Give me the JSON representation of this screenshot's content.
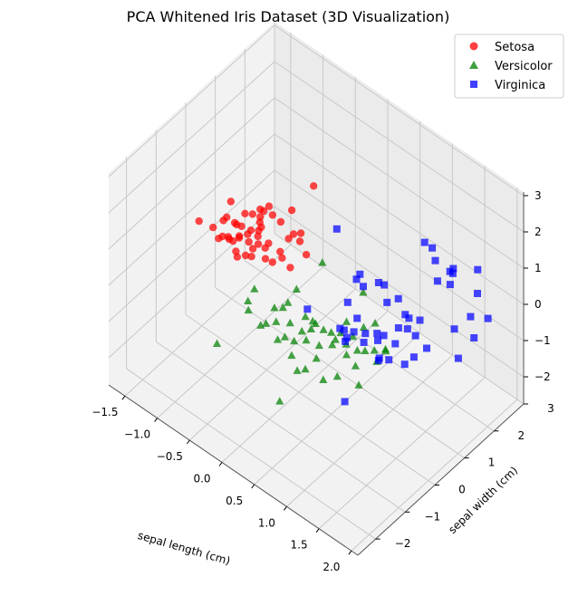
{
  "chart_data": {
    "type": "scatter",
    "projection": "3d",
    "title": "PCA Whitened Iris Dataset (3D Visualization)",
    "xlabel": "sepal length (cm)",
    "ylabel": "sepal width (cm)",
    "zlabel": "",
    "xlim": [
      -1.75,
      2.1
    ],
    "ylim": [
      -2.6,
      3.0
    ],
    "zlim": [
      -2.75,
      3.1
    ],
    "xticks": [
      -1.5,
      -1.0,
      -0.5,
      0.0,
      0.5,
      1.0,
      1.5,
      2.0
    ],
    "xtick_labels": [
      "−1.5",
      "−1.0",
      "−0.5",
      "0.0",
      "0.5",
      "1.0",
      "1.5",
      "2.0"
    ],
    "yticks": [
      -2,
      -1,
      0,
      1,
      2,
      3
    ],
    "ytick_labels": [
      "−2",
      "−1",
      "0",
      "1",
      "2",
      "3"
    ],
    "zticks": [
      -2,
      -1,
      0,
      1,
      2,
      3
    ],
    "ztick_labels": [
      "−2",
      "−1",
      "0",
      "1",
      "2",
      "3"
    ],
    "grid": true,
    "legend_position": "top-right",
    "series": [
      {
        "name": "Setosa",
        "marker": "circle",
        "color": "#ff0000",
        "points": [
          [
            -1.43,
            -0.25,
            0.41
          ],
          [
            -1.35,
            0.05,
            0.11
          ],
          [
            -1.29,
            0.38,
            0.22
          ],
          [
            -1.31,
            0.15,
            -0.22
          ],
          [
            -1.24,
            0.41,
            0.69
          ],
          [
            -1.25,
            0.65,
            -1.03
          ],
          [
            -1.16,
            0.18,
            -0.08
          ],
          [
            -1.14,
            -0.06,
            0.64
          ],
          [
            -1.19,
            0.02,
            0.08
          ],
          [
            -1.06,
            0.3,
            0.04
          ],
          [
            -1.1,
            0.3,
            0.31
          ],
          [
            -1.07,
            -0.05,
            0.27
          ],
          [
            -1.0,
            0.17,
            0.16
          ],
          [
            -0.97,
            0.43,
            -0.11
          ],
          [
            -1.07,
            0.17,
            0.49
          ],
          [
            -1.0,
            -0.04,
            0.23
          ],
          [
            -0.97,
            0.32,
            -0.4
          ],
          [
            -0.91,
            0.05,
            0.68
          ],
          [
            -0.91,
            -0.14,
            0.13
          ],
          [
            -0.86,
            0.57,
            0.82
          ],
          [
            -0.88,
            0.1,
            1.03
          ],
          [
            -0.86,
            0.52,
            0.27
          ],
          [
            -0.81,
            0.04,
            0.59
          ],
          [
            -0.82,
            0.17,
            0.59
          ],
          [
            -0.79,
            0.16,
            1.08
          ],
          [
            -0.72,
            0.19,
            0.53
          ],
          [
            -0.82,
            0.19,
            -0.15
          ],
          [
            -0.8,
            0.44,
            0.78
          ],
          [
            -0.74,
            0.06,
            0.26
          ],
          [
            -0.7,
            0.34,
            1.14
          ],
          [
            -0.71,
            0.54,
            1.11
          ],
          [
            -0.66,
            0.17,
            0.87
          ],
          [
            -0.65,
            0.1,
            1.07
          ],
          [
            -0.59,
            0.4,
            1.12
          ],
          [
            -0.6,
            0.17,
            0.37
          ],
          [
            -0.61,
            -0.04,
            0.62
          ],
          [
            -0.52,
            0.11,
            0.64
          ],
          [
            -0.5,
            0.48,
            0.98
          ],
          [
            -0.37,
            0.46,
            0.69
          ],
          [
            -0.39,
            -0.04,
            0.39
          ],
          [
            -0.42,
            0.35,
            0.18
          ],
          [
            -0.4,
            0.24,
            0.46
          ],
          [
            -0.33,
            0.48,
            1.51
          ],
          [
            -0.44,
            -0.17,
            0.52
          ],
          [
            -0.29,
            0.45,
            0.92
          ],
          [
            -0.29,
            0.7,
            0.76
          ],
          [
            -0.23,
            0.21,
            0.25
          ],
          [
            -0.21,
            0.49,
            0.79
          ],
          [
            -0.16,
            0.6,
            0.4
          ],
          [
            -0.13,
            0.78,
            2.2
          ]
        ]
      },
      {
        "name": "Versicolor",
        "marker": "triangle",
        "color": "#008000",
        "points": [
          [
            -0.47,
            -0.68,
            -0.56
          ],
          [
            -0.39,
            -0.44,
            -1.06
          ],
          [
            -0.38,
            -0.89,
            -0.04
          ],
          [
            -0.3,
            -0.85,
            0.36
          ],
          [
            -0.2,
            -0.39,
            -0.38
          ],
          [
            -0.14,
            -0.81,
            -0.43
          ],
          [
            -0.11,
            -0.3,
            -0.33
          ],
          [
            -0.05,
            -0.66,
            -0.38
          ],
          [
            -0.02,
            -0.33,
            -0.06
          ],
          [
            0.01,
            -0.74,
            -0.74
          ],
          [
            0.07,
            -0.63,
            -0.68
          ],
          [
            0.1,
            -0.3,
            0.43
          ],
          [
            0.12,
            -0.56,
            -0.28
          ],
          [
            0.16,
            -0.13,
            -0.38
          ],
          [
            0.21,
            -0.36,
            -0.55
          ],
          [
            0.24,
            -0.69,
            -0.54
          ],
          [
            0.25,
            -0.08,
            -0.43
          ],
          [
            0.27,
            0.2,
            1.0
          ],
          [
            0.28,
            -0.86,
            -0.76
          ],
          [
            0.33,
            -0.31,
            -0.38
          ],
          [
            0.38,
            -0.27,
            -0.2
          ],
          [
            0.36,
            -0.54,
            -0.48
          ],
          [
            0.44,
            -0.13,
            -0.4
          ],
          [
            0.4,
            -0.66,
            -1.14
          ],
          [
            0.48,
            0.04,
            -0.55
          ],
          [
            0.5,
            -0.41,
            -0.55
          ],
          [
            0.55,
            -1.26,
            -0.55
          ],
          [
            0.58,
            -0.68,
            -0.61
          ],
          [
            0.62,
            -0.23,
            -0.52
          ],
          [
            0.66,
            -0.03,
            -0.29
          ],
          [
            0.71,
            -0.32,
            -0.2
          ],
          [
            0.7,
            -0.71,
            -1.03
          ],
          [
            0.74,
            -0.01,
            0.1
          ],
          [
            0.79,
            -0.13,
            -0.37
          ],
          [
            0.83,
            -0.52,
            -0.92
          ],
          [
            0.87,
            0.27,
            0.86
          ],
          [
            0.87,
            -0.08,
            -0.1
          ],
          [
            0.91,
            -0.38,
            -0.33
          ],
          [
            0.95,
            0.11,
            0.11
          ],
          [
            0.98,
            -0.17,
            -0.28
          ],
          [
            1.02,
            -0.32,
            -0.55
          ],
          [
            1.05,
            0.28,
            0.22
          ],
          [
            1.08,
            -0.13,
            -0.2
          ],
          [
            1.12,
            0.1,
            -0.31
          ],
          [
            1.14,
            -0.47,
            -0.82
          ],
          [
            1.18,
            0.05,
            -0.51
          ],
          [
            1.24,
            0.22,
            -0.27
          ],
          [
            1.26,
            0.17,
            -0.16
          ],
          [
            0.48,
            -1.7,
            -1.15
          ],
          [
            -0.53,
            -1.61,
            -0.86
          ]
        ]
      },
      {
        "name": "Virginica",
        "marker": "square",
        "color": "#0000ff",
        "points": [
          [
            -0.27,
            1.87,
            0.03
          ],
          [
            0.19,
            -0.13,
            -0.13
          ],
          [
            0.41,
            0.75,
            -0.33
          ],
          [
            0.45,
            0.96,
            0.2
          ],
          [
            0.56,
            0.3,
            -0.58
          ],
          [
            0.57,
            0.14,
            -0.4
          ],
          [
            0.59,
            0.77,
            0.65
          ],
          [
            0.62,
            0.82,
            0.31
          ],
          [
            0.62,
            0.61,
            -0.41
          ],
          [
            0.65,
            1.27,
            0.12
          ],
          [
            0.67,
            0.39,
            -0.56
          ],
          [
            0.68,
            0.08,
            -0.58
          ],
          [
            0.75,
            1.24,
            0.2
          ],
          [
            0.8,
            -0.13,
            -0.17
          ],
          [
            0.89,
            0.3,
            -0.27
          ],
          [
            0.93,
            0.16,
            -0.36
          ],
          [
            0.93,
            0.63,
            -0.66
          ],
          [
            0.96,
            -0.55,
            -1.43
          ],
          [
            0.96,
            0.54,
            -0.36
          ],
          [
            1.05,
            0.68,
            0.5
          ],
          [
            1.06,
            0.72,
            -1.1
          ],
          [
            1.1,
            0.31,
            -0.7
          ],
          [
            1.11,
            0.44,
            -0.16
          ],
          [
            1.13,
            0.22,
            -0.66
          ],
          [
            1.16,
            0.83,
            -0.18
          ],
          [
            1.17,
            0.8,
            0.66
          ],
          [
            1.22,
            1.0,
            -0.26
          ],
          [
            1.26,
            0.5,
            -0.25
          ],
          [
            1.26,
            1.49,
            1.81
          ],
          [
            1.27,
            0.94,
            0.14
          ],
          [
            1.28,
            1.14,
            -0.48
          ],
          [
            1.29,
            0.77,
            0.39
          ],
          [
            1.33,
            1.18,
            -0.02
          ],
          [
            1.36,
            0.6,
            -0.77
          ],
          [
            1.37,
            1.32,
            -0.85
          ],
          [
            1.38,
            1.59,
            1.38
          ],
          [
            1.42,
            1.4,
            1.92
          ],
          [
            1.45,
            1.51,
            0.96
          ],
          [
            1.46,
            2.01,
            0.81
          ],
          [
            1.48,
            0.65,
            -0.46
          ],
          [
            1.52,
            1.78,
            1.11
          ],
          [
            1.55,
            1.72,
            0.83
          ],
          [
            1.63,
            1.65,
            1.42
          ],
          [
            1.67,
            1.6,
            -0.16
          ],
          [
            1.74,
            1.58,
            -0.87
          ],
          [
            1.78,
            2.14,
            0.55
          ],
          [
            1.8,
            1.98,
            -0.53
          ],
          [
            1.81,
            1.84,
            0.17
          ],
          [
            2.02,
            1.97,
            0.28
          ],
          [
            1.6,
            2.54,
            0.69
          ]
        ]
      }
    ]
  }
}
